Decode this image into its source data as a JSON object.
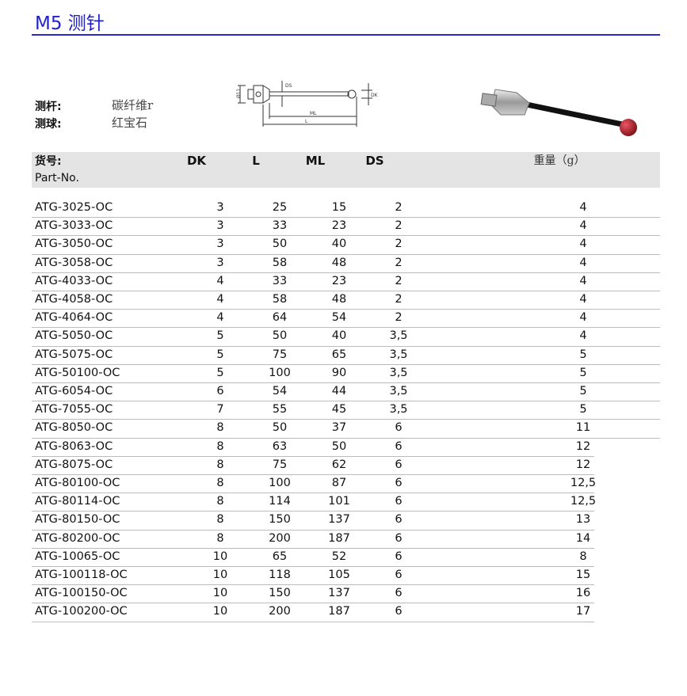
{
  "title": "M5 测针",
  "specs": {
    "stylus_label": "测杆:",
    "stylus_value": "碳纤维r",
    "tip_label": "测球:",
    "tip_value": "红宝石"
  },
  "diagram": {
    "labels": [
      "Ø11",
      "DS",
      "DK",
      "ML",
      "L"
    ]
  },
  "table": {
    "headers": {
      "part_cn": "货号:",
      "part_en": "Part-No.",
      "dk": "DK",
      "l": "L",
      "ml": "ML",
      "ds": "DS",
      "weight": "重量（g）"
    },
    "rows": [
      [
        "ATG-3025-OC",
        "3",
        "25",
        "15",
        "2",
        "4"
      ],
      [
        "ATG-3033-OC",
        "3",
        "33",
        "23",
        "2",
        "4"
      ],
      [
        "ATG-3050-OC",
        "3",
        "50",
        "40",
        "2",
        "4"
      ],
      [
        "ATG-3058-OC",
        "3",
        "58",
        "48",
        "2",
        "4"
      ],
      [
        "ATG-4033-OC",
        "4",
        "33",
        "23",
        "2",
        "4"
      ],
      [
        "ATG-4058-OC",
        "4",
        "58",
        "48",
        "2",
        "4"
      ],
      [
        "ATG-4064-OC",
        "4",
        "64",
        "54",
        "2",
        "4"
      ],
      [
        "ATG-5050-OC",
        "5",
        "50",
        "40",
        "3,5",
        "4"
      ],
      [
        "ATG-5075-OC",
        "5",
        "75",
        "65",
        "3,5",
        "5"
      ],
      [
        "ATG-50100-OC",
        "5",
        "100",
        "90",
        "3,5",
        "5"
      ],
      [
        "ATG-6054-OC",
        "6",
        "54",
        "44",
        "3,5",
        "5"
      ],
      [
        "ATG-7055-OC",
        "7",
        "55",
        "45",
        "3,5",
        "5"
      ],
      [
        "ATG-8050-OC",
        "8",
        "50",
        "37",
        "6",
        "11"
      ],
      [
        "ATG-8063-OC",
        "8",
        "63",
        "50",
        "6",
        "12"
      ],
      [
        "ATG-8075-OC",
        "8",
        "75",
        "62",
        "6",
        "12"
      ],
      [
        "ATG-80100-OC",
        "8",
        "100",
        "87",
        "6",
        "12,5"
      ],
      [
        "ATG-80114-OC",
        "8",
        "114",
        "101",
        "6",
        "12,5"
      ],
      [
        "ATG-80150-OC",
        "8",
        "150",
        "137",
        "6",
        "13"
      ],
      [
        "ATG-80200-OC",
        "8",
        "200",
        "187",
        "6",
        "14"
      ],
      [
        "ATG-10065-OC",
        "10",
        "65",
        "52",
        "6",
        "8"
      ],
      [
        "ATG-100118-OC",
        "10",
        "118",
        "105",
        "6",
        "15"
      ],
      [
        "ATG-100150-OC",
        "10",
        "150",
        "137",
        "6",
        "16"
      ],
      [
        "ATG-100200-OC",
        "10",
        "200",
        "187",
        "6",
        "17"
      ]
    ]
  },
  "colors": {
    "accent": "#2a2acc",
    "header_bg": "#e4e4e4",
    "rule": "#bbbbbb",
    "ruby": "#b5232a"
  }
}
